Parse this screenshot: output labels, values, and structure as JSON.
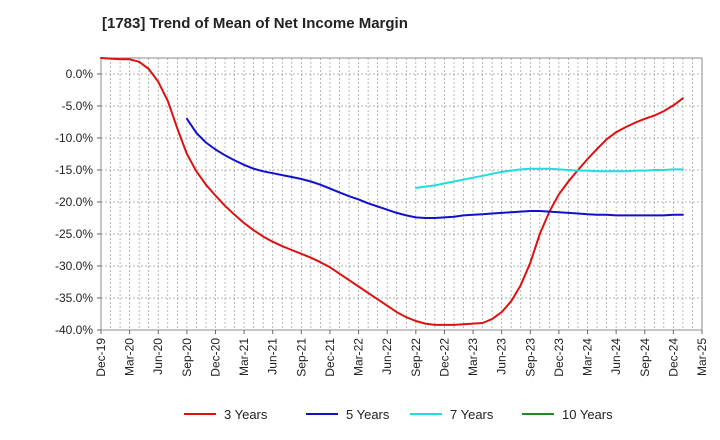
{
  "chart_data": {
    "type": "line",
    "title": "[1783]  Trend of Mean of Net Income Margin",
    "xlabel": "",
    "ylabel": "",
    "x_ticks": [
      "Dec-19",
      "Mar-20",
      "Jun-20",
      "Sep-20",
      "Dec-20",
      "Mar-21",
      "Jun-21",
      "Sep-21",
      "Dec-21",
      "Mar-22",
      "Jun-22",
      "Sep-22",
      "Dec-22",
      "Mar-23",
      "Jun-23",
      "Sep-23",
      "Dec-23",
      "Mar-24",
      "Jun-24",
      "Sep-24",
      "Dec-24",
      "Mar-25"
    ],
    "y_ticks": [
      "0.0%",
      "-5.0%",
      "-10.0%",
      "-15.0%",
      "-20.0%",
      "-25.0%",
      "-30.0%",
      "-35.0%",
      "-40.0%"
    ],
    "ylim": [
      -40.0,
      2.5
    ],
    "grid": true,
    "legend_position": "bottom",
    "series": [
      {
        "name": "3 Years",
        "color": "#dd1111",
        "points": [
          [
            "Dec-19",
            2.5
          ],
          [
            "Jan-20",
            2.4
          ],
          [
            "Feb-20",
            2.3
          ],
          [
            "Mar-20",
            2.3
          ],
          [
            "Apr-20",
            1.9
          ],
          [
            "May-20",
            0.8
          ],
          [
            "Jun-20",
            -1.2
          ],
          [
            "Jul-20",
            -4.2
          ],
          [
            "Aug-20",
            -8.5
          ],
          [
            "Sep-20",
            -12.5
          ],
          [
            "Oct-20",
            -15.2
          ],
          [
            "Nov-20",
            -17.3
          ],
          [
            "Dec-20",
            -19.0
          ],
          [
            "Jan-21",
            -20.6
          ],
          [
            "Feb-21",
            -22.0
          ],
          [
            "Mar-21",
            -23.3
          ],
          [
            "Apr-21",
            -24.4
          ],
          [
            "May-21",
            -25.4
          ],
          [
            "Jun-21",
            -26.2
          ],
          [
            "Jul-21",
            -26.9
          ],
          [
            "Aug-21",
            -27.5
          ],
          [
            "Sep-21",
            -28.1
          ],
          [
            "Oct-21",
            -28.7
          ],
          [
            "Nov-21",
            -29.4
          ],
          [
            "Dec-21",
            -30.2
          ],
          [
            "Jan-22",
            -31.2
          ],
          [
            "Feb-22",
            -32.2
          ],
          [
            "Mar-22",
            -33.2
          ],
          [
            "Apr-22",
            -34.2
          ],
          [
            "May-22",
            -35.2
          ],
          [
            "Jun-22",
            -36.2
          ],
          [
            "Jul-22",
            -37.2
          ],
          [
            "Aug-22",
            -38.0
          ],
          [
            "Sep-22",
            -38.6
          ],
          [
            "Oct-22",
            -39.0
          ],
          [
            "Nov-22",
            -39.2
          ],
          [
            "Dec-22",
            -39.2
          ],
          [
            "Jan-23",
            -39.2
          ],
          [
            "Feb-23",
            -39.1
          ],
          [
            "Mar-23",
            -39.0
          ],
          [
            "Apr-23",
            -38.9
          ],
          [
            "May-23",
            -38.3
          ],
          [
            "Jun-23",
            -37.2
          ],
          [
            "Jul-23",
            -35.5
          ],
          [
            "Aug-23",
            -33.0
          ],
          [
            "Sep-23",
            -29.5
          ],
          [
            "Oct-23",
            -25.0
          ],
          [
            "Nov-23",
            -21.5
          ],
          [
            "Dec-23",
            -18.8
          ],
          [
            "Jan-24",
            -16.8
          ],
          [
            "Feb-24",
            -15.0
          ],
          [
            "Mar-24",
            -13.3
          ],
          [
            "Apr-24",
            -11.7
          ],
          [
            "May-24",
            -10.2
          ],
          [
            "Jun-24",
            -9.1
          ],
          [
            "Jul-24",
            -8.3
          ],
          [
            "Aug-24",
            -7.6
          ],
          [
            "Sep-24",
            -7.0
          ],
          [
            "Oct-24",
            -6.5
          ],
          [
            "Nov-24",
            -5.8
          ],
          [
            "Dec-24",
            -4.9
          ],
          [
            "Jan-25",
            -3.8
          ]
        ]
      },
      {
        "name": "5 Years",
        "color": "#1111cc",
        "points": [
          [
            "Sep-20",
            -7.0
          ],
          [
            "Oct-20",
            -9.2
          ],
          [
            "Nov-20",
            -10.7
          ],
          [
            "Dec-20",
            -11.8
          ],
          [
            "Jan-21",
            -12.7
          ],
          [
            "Feb-21",
            -13.5
          ],
          [
            "Mar-21",
            -14.2
          ],
          [
            "Apr-21",
            -14.8
          ],
          [
            "May-21",
            -15.2
          ],
          [
            "Jun-21",
            -15.5
          ],
          [
            "Jul-21",
            -15.8
          ],
          [
            "Aug-21",
            -16.1
          ],
          [
            "Sep-21",
            -16.4
          ],
          [
            "Oct-21",
            -16.8
          ],
          [
            "Nov-21",
            -17.3
          ],
          [
            "Dec-21",
            -17.9
          ],
          [
            "Jan-22",
            -18.5
          ],
          [
            "Feb-22",
            -19.1
          ],
          [
            "Mar-22",
            -19.6
          ],
          [
            "Apr-22",
            -20.2
          ],
          [
            "May-22",
            -20.7
          ],
          [
            "Jun-22",
            -21.2
          ],
          [
            "Jul-22",
            -21.7
          ],
          [
            "Aug-22",
            -22.1
          ],
          [
            "Sep-22",
            -22.4
          ],
          [
            "Oct-22",
            -22.5
          ],
          [
            "Nov-22",
            -22.5
          ],
          [
            "Dec-22",
            -22.4
          ],
          [
            "Jan-23",
            -22.3
          ],
          [
            "Feb-23",
            -22.1
          ],
          [
            "Mar-23",
            -22.0
          ],
          [
            "Apr-23",
            -21.9
          ],
          [
            "May-23",
            -21.8
          ],
          [
            "Jun-23",
            -21.7
          ],
          [
            "Jul-23",
            -21.6
          ],
          [
            "Aug-23",
            -21.5
          ],
          [
            "Sep-23",
            -21.4
          ],
          [
            "Oct-23",
            -21.4
          ],
          [
            "Nov-23",
            -21.5
          ],
          [
            "Dec-23",
            -21.6
          ],
          [
            "Jan-24",
            -21.7
          ],
          [
            "Feb-24",
            -21.8
          ],
          [
            "Mar-24",
            -21.9
          ],
          [
            "Apr-24",
            -22.0
          ],
          [
            "May-24",
            -22.0
          ],
          [
            "Jun-24",
            -22.1
          ],
          [
            "Jul-24",
            -22.1
          ],
          [
            "Aug-24",
            -22.1
          ],
          [
            "Sep-24",
            -22.1
          ],
          [
            "Oct-24",
            -22.1
          ],
          [
            "Nov-24",
            -22.1
          ],
          [
            "Dec-24",
            -22.0
          ],
          [
            "Jan-25",
            -22.0
          ]
        ]
      },
      {
        "name": "7 Years",
        "color": "#22dddd",
        "points": [
          [
            "Sep-22",
            -17.8
          ],
          [
            "Oct-22",
            -17.6
          ],
          [
            "Nov-22",
            -17.4
          ],
          [
            "Dec-22",
            -17.1
          ],
          [
            "Jan-23",
            -16.8
          ],
          [
            "Feb-23",
            -16.5
          ],
          [
            "Mar-23",
            -16.2
          ],
          [
            "Apr-23",
            -15.9
          ],
          [
            "May-23",
            -15.6
          ],
          [
            "Jun-23",
            -15.3
          ],
          [
            "Jul-23",
            -15.1
          ],
          [
            "Aug-23",
            -14.9
          ],
          [
            "Sep-23",
            -14.8
          ],
          [
            "Oct-23",
            -14.8
          ],
          [
            "Nov-23",
            -14.8
          ],
          [
            "Dec-23",
            -14.9
          ],
          [
            "Jan-24",
            -15.0
          ],
          [
            "Feb-24",
            -15.1
          ],
          [
            "Mar-24",
            -15.1
          ],
          [
            "Apr-24",
            -15.2
          ],
          [
            "May-24",
            -15.2
          ],
          [
            "Jun-24",
            -15.2
          ],
          [
            "Jul-24",
            -15.2
          ],
          [
            "Aug-24",
            -15.1
          ],
          [
            "Sep-24",
            -15.1
          ],
          [
            "Oct-24",
            -15.0
          ],
          [
            "Nov-24",
            -15.0
          ],
          [
            "Dec-24",
            -14.9
          ],
          [
            "Jan-25",
            -14.9
          ]
        ]
      },
      {
        "name": "10 Years",
        "color": "#228822",
        "points": []
      }
    ]
  }
}
